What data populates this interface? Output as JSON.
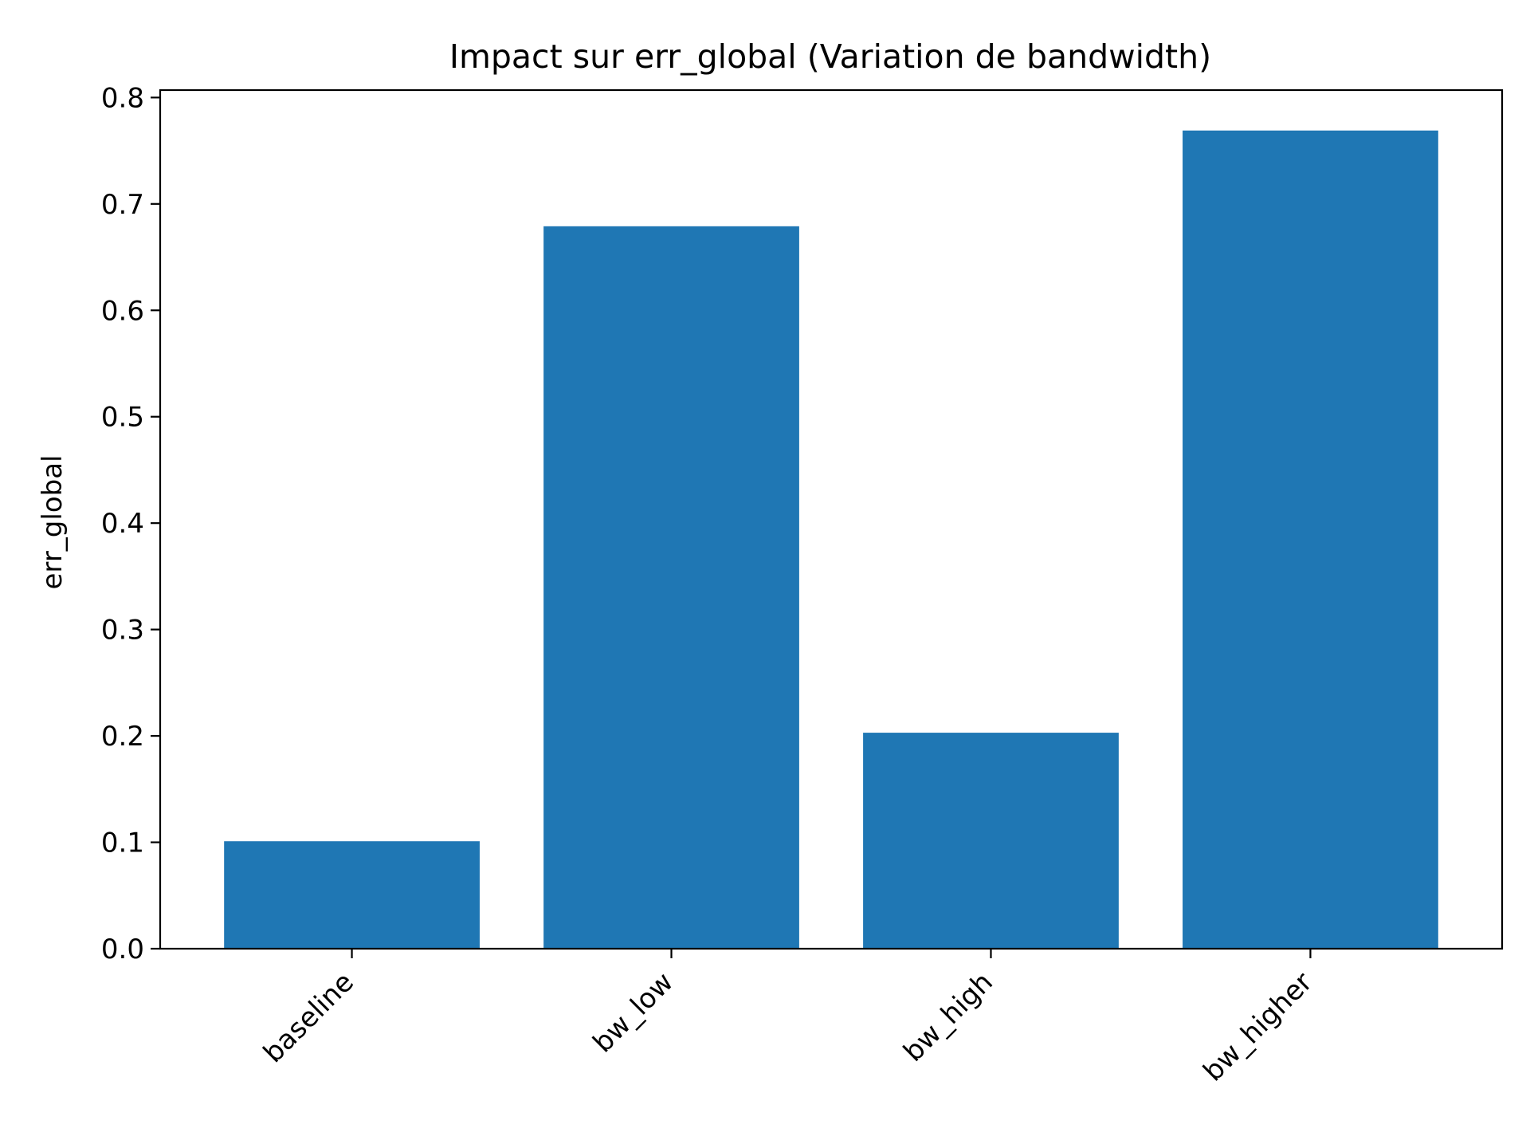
{
  "chart_data": {
    "type": "bar",
    "title": "Impact sur err_global (Variation de bandwidth)",
    "xlabel": "",
    "ylabel": "err_global",
    "categories": [
      "baseline",
      "bw_low",
      "bw_high",
      "bw_higher"
    ],
    "values": [
      0.101,
      0.679,
      0.203,
      0.769
    ],
    "ylim": [
      0,
      0.807
    ],
    "yticks": [
      0.0,
      0.1,
      0.2,
      0.3,
      0.4,
      0.5,
      0.6,
      0.7,
      0.8
    ],
    "ytick_labels": [
      "0.0",
      "0.1",
      "0.2",
      "0.3",
      "0.4",
      "0.5",
      "0.6",
      "0.7",
      "0.8"
    ],
    "grid": false,
    "bar_color": "#1f77b4"
  }
}
